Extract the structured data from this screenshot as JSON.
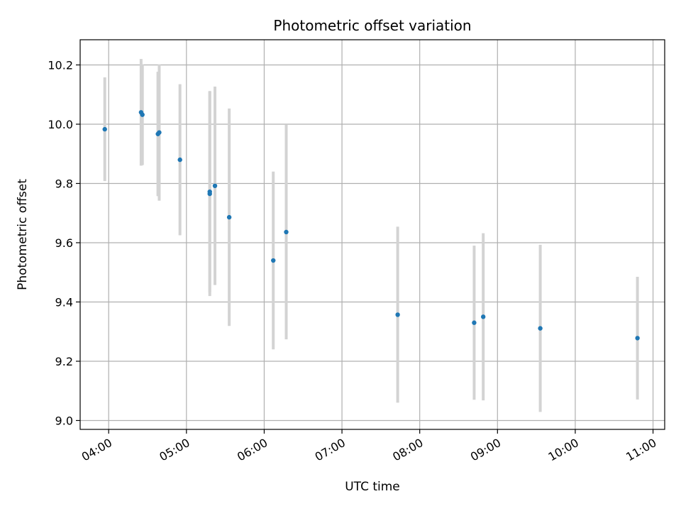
{
  "chart_data": {
    "type": "scatter",
    "title": "Photometric offset variation",
    "xlabel": "UTC time",
    "ylabel": "Photometric offset",
    "xlim": [
      "03:38",
      "11:09"
    ],
    "ylim": [
      8.97,
      10.285
    ],
    "grid": true,
    "x_ticks": [
      "04:00",
      "05:00",
      "06:00",
      "07:00",
      "08:00",
      "09:00",
      "10:00",
      "11:00"
    ],
    "y_ticks": [
      9.0,
      9.2,
      9.4,
      9.6,
      9.8,
      10.0,
      10.2
    ],
    "point_color": "#1f77b4",
    "errorbar_color": "#d3d3d3",
    "points": [
      {
        "time": "03:57",
        "y": 9.983,
        "yerr": 0.175
      },
      {
        "time": "04:25",
        "y": 10.04,
        "yerr": 0.18
      },
      {
        "time": "04:26",
        "y": 10.032,
        "yerr": 0.17
      },
      {
        "time": "04:38",
        "y": 9.967,
        "yerr": 0.21
      },
      {
        "time": "04:39",
        "y": 9.972,
        "yerr": 0.23
      },
      {
        "time": "04:55",
        "y": 9.88,
        "yerr": 0.255
      },
      {
        "time": "05:18",
        "y": 9.772,
        "yerr": 0.34
      },
      {
        "time": "05:18",
        "y": 9.765,
        "yerr": 0.345
      },
      {
        "time": "05:22",
        "y": 9.792,
        "yerr": 0.335
      },
      {
        "time": "05:33",
        "y": 9.686,
        "yerr": 0.367
      },
      {
        "time": "06:07",
        "y": 9.54,
        "yerr": 0.3
      },
      {
        "time": "06:17",
        "y": 9.636,
        "yerr": 0.362
      },
      {
        "time": "07:43",
        "y": 9.357,
        "yerr": 0.297
      },
      {
        "time": "08:42",
        "y": 9.33,
        "yerr": 0.26
      },
      {
        "time": "08:49",
        "y": 9.35,
        "yerr": 0.282
      },
      {
        "time": "09:33",
        "y": 9.311,
        "yerr": 0.282
      },
      {
        "time": "10:48",
        "y": 9.278,
        "yerr": 0.207
      }
    ]
  }
}
